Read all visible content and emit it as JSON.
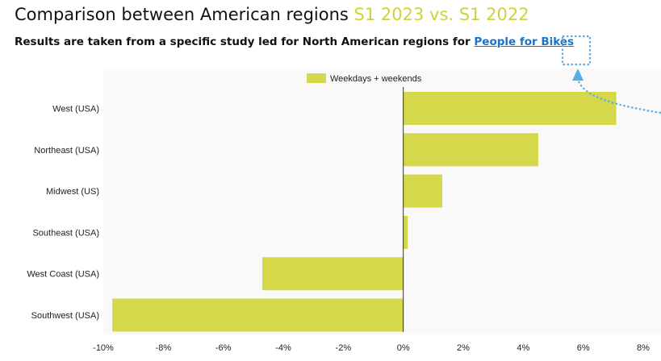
{
  "header": {
    "title_main": "Comparison between American regions",
    "title_highlight": "S1 2023 vs. S1 2022",
    "subtitle_text": "Results are taken from a specific study led for North American regions for",
    "subtitle_link": "People for Bikes"
  },
  "colors": {
    "bar": "#d4d84a",
    "highlight": "#cfd23a",
    "link": "#1a73c9",
    "annotation": "#5aaee8",
    "plot_bg": "#f9f9f9"
  },
  "chart_data": {
    "type": "bar",
    "orientation": "horizontal",
    "categories": [
      "West (USA)",
      "Northeast (USA)",
      "Midwest (US)",
      "Southeast (USA)",
      "West Coast (USA)",
      "Southwest (USA)"
    ],
    "series": [
      {
        "name": "Weekdays + weekends",
        "values": [
          7.1,
          4.5,
          1.3,
          0.15,
          -4.7,
          -9.7
        ]
      }
    ],
    "xlim": [
      -10,
      8
    ],
    "xticks": [
      -10,
      -8,
      -6,
      -4,
      -2,
      0,
      2,
      4,
      6,
      8
    ],
    "tick_suffix": "%",
    "legend_position": "top",
    "grid": false
  }
}
